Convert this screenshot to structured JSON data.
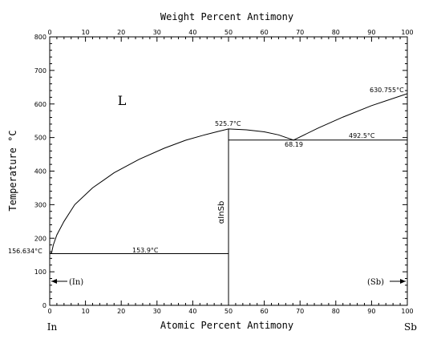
{
  "chart_data": {
    "type": "phase-diagram",
    "top_axis": {
      "label": "Weight Percent Antimony",
      "ticks": [
        "0",
        "10",
        "20",
        "30",
        "40",
        "50",
        "60",
        "70",
        "80",
        "90",
        "100"
      ]
    },
    "bottom_axis": {
      "label": "Atomic Percent Antimony",
      "ticks": [
        "0",
        "10",
        "20",
        "30",
        "40",
        "50",
        "60",
        "70",
        "80",
        "90",
        "100"
      ],
      "left_element": "In",
      "right_element": "Sb",
      "range": [
        0,
        100
      ]
    },
    "left_axis": {
      "label": "Temperature °C",
      "ticks": [
        "0",
        "100",
        "200",
        "300",
        "400",
        "500",
        "600",
        "700",
        "800"
      ],
      "range": [
        0,
        800
      ]
    },
    "phase_labels": {
      "liquid": "L",
      "compound": "αInSb",
      "in_solid": "(In)",
      "sb_solid": "(Sb)"
    },
    "annotations": {
      "in_melting": "156.634°C",
      "eutectic_low": "153.9°C",
      "insb_melting": "525.7°C",
      "eutectic_high_comp": "68.19",
      "eutectic_high": "492.5°C",
      "sb_melting": "630.755°C"
    },
    "points": {
      "in_melting": [
        0,
        156.634
      ],
      "eutectic_low": [
        0.5,
        153.9
      ],
      "insb": [
        50.0,
        525.7
      ],
      "eutectic_high": [
        68.19,
        492.5
      ],
      "sb_melting": [
        100,
        630.755
      ]
    },
    "liquidus": [
      [
        0.5,
        153.9
      ],
      [
        0.7,
        165
      ],
      [
        1.0,
        180
      ],
      [
        2,
        210
      ],
      [
        4,
        250
      ],
      [
        7,
        300
      ],
      [
        12,
        350
      ],
      [
        18,
        395
      ],
      [
        25,
        435
      ],
      [
        32,
        468
      ],
      [
        38,
        492
      ],
      [
        43,
        507
      ],
      [
        47,
        518
      ],
      [
        50.0,
        525.7
      ],
      [
        55,
        523
      ],
      [
        60,
        517
      ],
      [
        64,
        508
      ],
      [
        68.19,
        492.5
      ],
      [
        75,
        528
      ],
      [
        82,
        561
      ],
      [
        90,
        595
      ],
      [
        100,
        630.755
      ]
    ]
  }
}
